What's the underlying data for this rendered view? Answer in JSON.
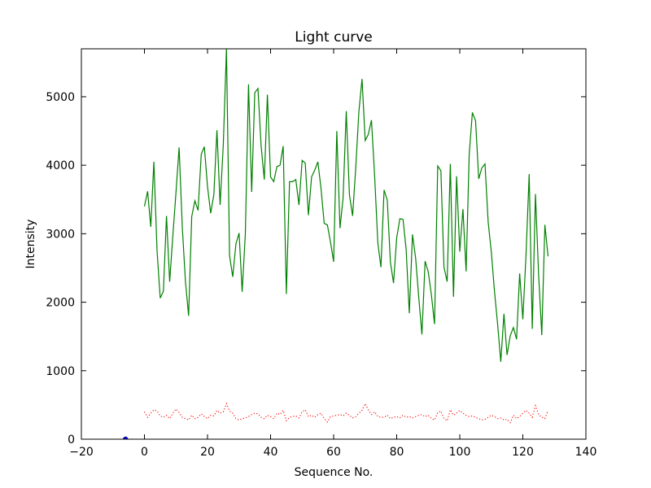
{
  "chart_data": {
    "type": "line",
    "title": "Light curve",
    "xlabel": "Sequence No.",
    "ylabel": "Intensity",
    "xlim": [
      -20,
      140
    ],
    "ylim": [
      0,
      5700
    ],
    "xticks": [
      -20,
      0,
      20,
      40,
      60,
      80,
      100,
      120,
      140
    ],
    "yticks": [
      0,
      1000,
      2000,
      3000,
      4000,
      5000
    ],
    "grid": false,
    "legend": false,
    "series": [
      {
        "style": "solid",
        "color": "#008000",
        "x_start": 0,
        "x_step": 1,
        "values": [
          3400,
          3620,
          3100,
          4050,
          2750,
          2060,
          2160,
          3260,
          2300,
          2970,
          3610,
          4260,
          3100,
          2300,
          1800,
          3250,
          3480,
          3340,
          4160,
          4270,
          3690,
          3300,
          3570,
          4510,
          3420,
          4300,
          5700,
          2680,
          2370,
          2850,
          3010,
          2150,
          3000,
          5180,
          3610,
          5060,
          5120,
          4280,
          3790,
          5030,
          3830,
          3760,
          3980,
          4000,
          4280,
          2120,
          3760,
          3760,
          3790,
          3420,
          4070,
          4030,
          3270,
          3830,
          3930,
          4050,
          3660,
          3150,
          3130,
          2880,
          2590,
          4500,
          3080,
          3520,
          4790,
          3570,
          3260,
          3950,
          4780,
          5260,
          4360,
          4450,
          4660,
          3840,
          2870,
          2510,
          3640,
          3490,
          2580,
          2280,
          2940,
          3220,
          3210,
          2770,
          1840,
          2990,
          2640,
          2070,
          1530,
          2600,
          2440,
          2110,
          1680,
          3990,
          3920,
          2510,
          2300,
          4020,
          2080,
          3840,
          2740,
          3360,
          2450,
          4160,
          4770,
          4650,
          3800,
          3960,
          4020,
          3170,
          2730,
          2170,
          1680,
          1130,
          1830,
          1230,
          1510,
          1630,
          1460,
          2420,
          1750,
          2690,
          3870,
          1610,
          3580,
          2400,
          1520,
          3130,
          2670
        ]
      },
      {
        "style": "dotted",
        "color": "#ff0000",
        "x_start": 0,
        "x_step": 1,
        "values": [
          400,
          320,
          380,
          430,
          410,
          340,
          320,
          350,
          300,
          380,
          440,
          390,
          320,
          300,
          280,
          350,
          300,
          320,
          370,
          330,
          300,
          350,
          340,
          420,
          380,
          400,
          520,
          410,
          380,
          300,
          280,
          300,
          310,
          330,
          360,
          380,
          370,
          320,
          300,
          350,
          330,
          300,
          380,
          360,
          420,
          270,
          320,
          330,
          340,
          310,
          400,
          430,
          330,
          350,
          320,
          360,
          380,
          300,
          250,
          330,
          340,
          350,
          360,
          340,
          380,
          350,
          310,
          330,
          380,
          420,
          520,
          430,
          360,
          400,
          330,
          320,
          320,
          350,
          300,
          320,
          330,
          310,
          350,
          320,
          330,
          310,
          330,
          350,
          360,
          330,
          350,
          300,
          280,
          390,
          410,
          300,
          270,
          430,
          350,
          380,
          420,
          380,
          350,
          330,
          340,
          320,
          300,
          280,
          290,
          320,
          350,
          330,
          300,
          310,
          280,
          290,
          240,
          350,
          300,
          330,
          380,
          420,
          380,
          320,
          490,
          360,
          320,
          300,
          420
        ]
      },
      {
        "style": "marker",
        "color": "#0000ff",
        "x": [
          -6
        ],
        "values": [
          0
        ]
      }
    ]
  }
}
